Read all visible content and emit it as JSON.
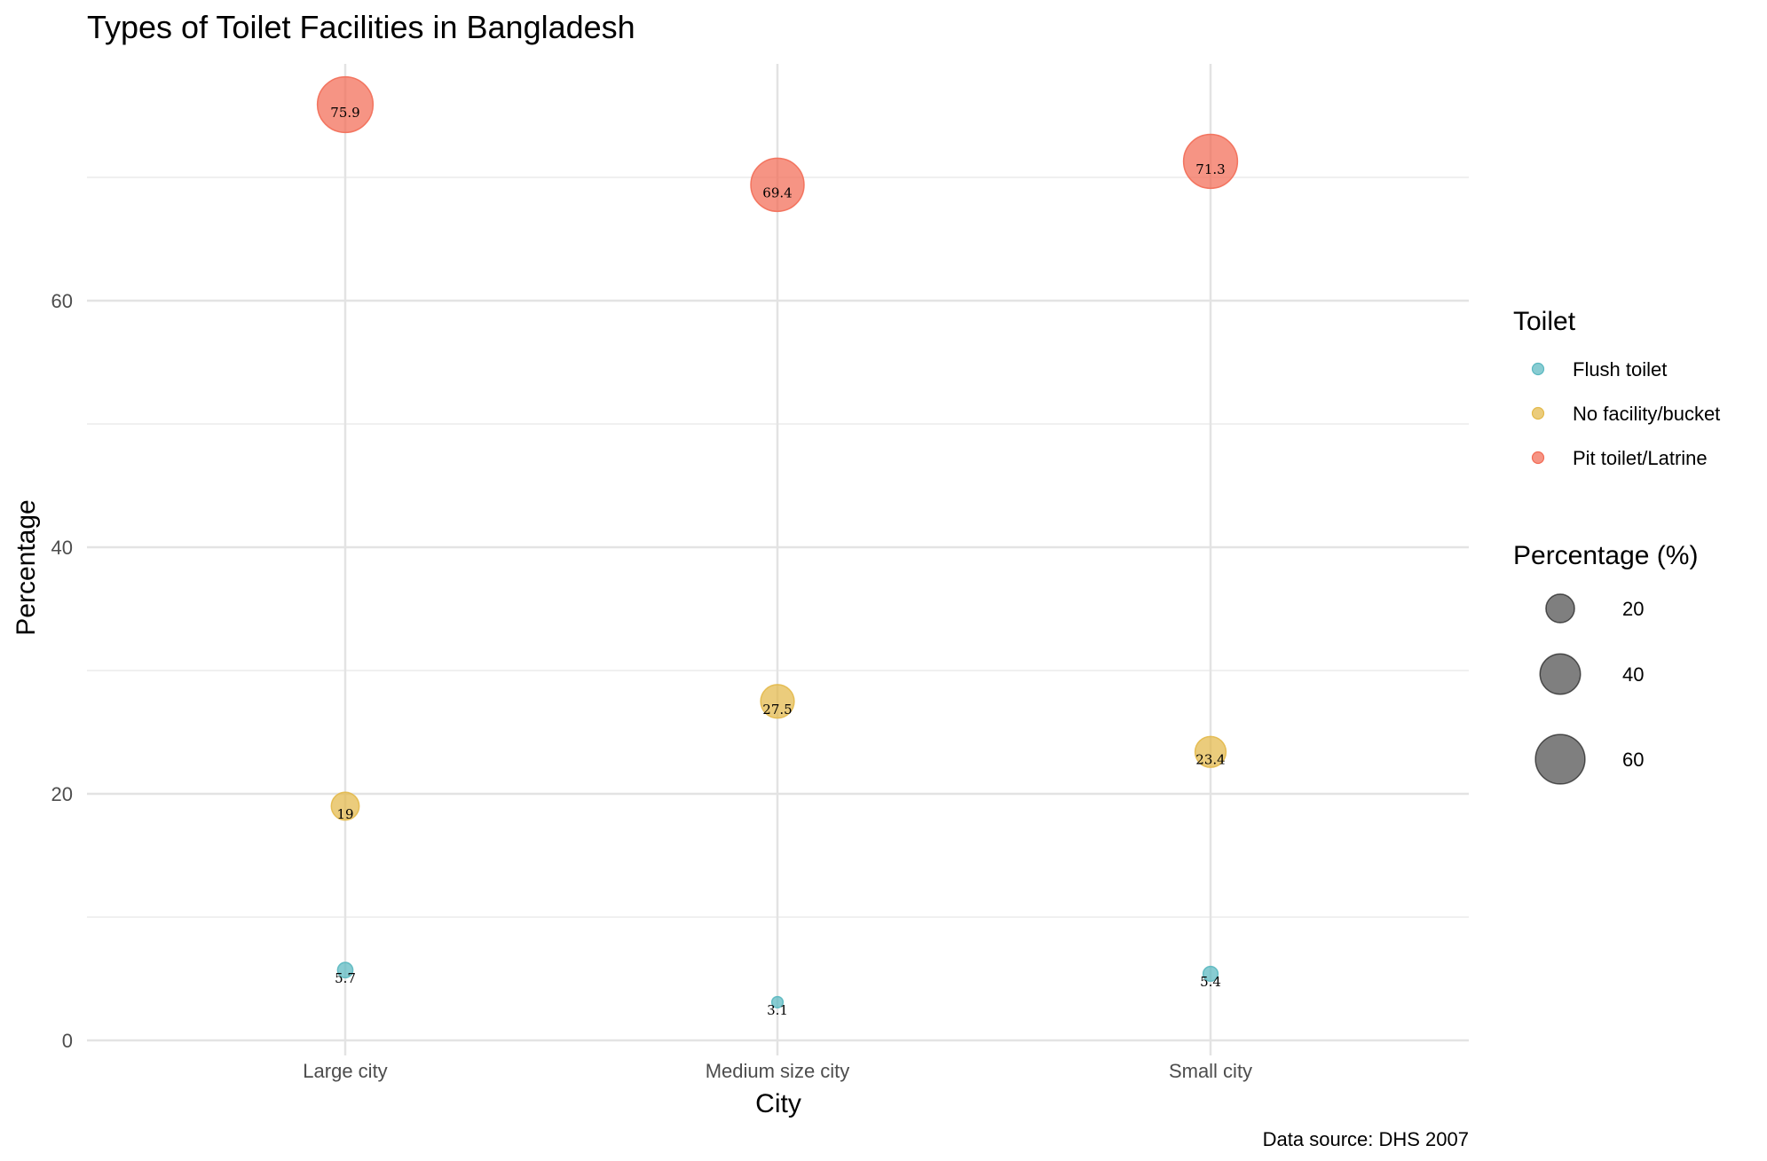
{
  "chart_data": {
    "type": "scatter",
    "title": "Types of Toilet Facilities in Bangladesh",
    "xlabel": "City",
    "ylabel": "Percentage",
    "caption": "Data source: DHS 2007",
    "categories": [
      "Large city",
      "Medium size city",
      "Small city"
    ],
    "ylim": [
      0,
      77
    ],
    "yticks": [
      0,
      20,
      40,
      60
    ],
    "grid": true,
    "legend_position": "right",
    "series": [
      {
        "name": "Flush toilet",
        "color": "#5ab8c0",
        "values": [
          5.7,
          3.1,
          5.4
        ],
        "labels": [
          "5.7",
          "3.1",
          "5.4"
        ]
      },
      {
        "name": "No facility/bucket",
        "color": "#e3b94a",
        "values": [
          19,
          27.5,
          23.4
        ],
        "labels": [
          "19",
          "27.5",
          "23.4"
        ]
      },
      {
        "name": "Pit toilet/Latrine",
        "color": "#f26b55",
        "values": [
          75.9,
          69.4,
          71.3
        ],
        "labels": [
          "75.9",
          "69.4",
          "71.3"
        ]
      }
    ],
    "color_legend": {
      "title": "Toilet"
    },
    "size_legend": {
      "title": "Percentage (%)",
      "values": [
        20,
        40,
        60
      ],
      "labels": [
        "20",
        "40",
        "60"
      ]
    }
  }
}
